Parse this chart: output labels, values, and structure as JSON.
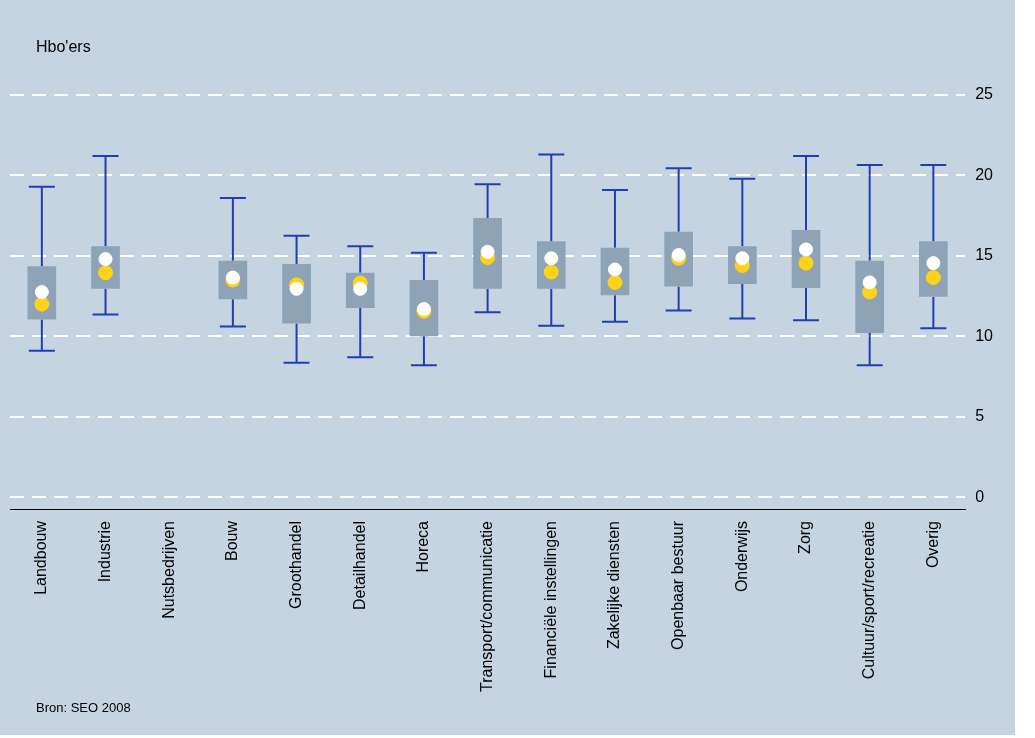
{
  "chart_data": {
    "type": "box",
    "ylabel": "Hbo'ers",
    "annotations": [
      "Bron: SEO 2008"
    ],
    "categories": [
      "Landbouw",
      "Industrie",
      "Nutsbedrijven",
      "Bouw",
      "Groothandel",
      "Detailhandel",
      "Horeca",
      "Transport/communicatie",
      "Financiële instellingen",
      "Zakelijke diensten",
      "Openbaar bestuur",
      "Onderwijs",
      "Zorg",
      "Cultuur/sport/recreatie",
      "Overig"
    ],
    "series": [
      {
        "color": "#8fa3b6",
        "boxes": [
          {
            "low": 9.1,
            "q1": 11.05,
            "median": 12.0,
            "q3": 14.35,
            "high": 19.3,
            "mean": 12.75
          },
          {
            "low": 11.35,
            "q1": 12.95,
            "median": 13.95,
            "q3": 15.6,
            "high": 21.2,
            "mean": 14.8
          },
          null,
          {
            "low": 10.6,
            "q1": 12.3,
            "median": 13.5,
            "q3": 14.7,
            "high": 18.6,
            "mean": 13.65
          },
          {
            "low": 8.35,
            "q1": 10.8,
            "median": 13.2,
            "q3": 14.5,
            "high": 16.25,
            "mean": 12.95
          },
          {
            "low": 8.7,
            "q1": 11.75,
            "median": 13.3,
            "q3": 13.95,
            "high": 15.6,
            "mean": 12.95
          },
          {
            "low": 8.2,
            "q1": 10.0,
            "median": 11.55,
            "q3": 13.5,
            "high": 15.2,
            "mean": 11.7
          },
          {
            "low": 11.5,
            "q1": 12.95,
            "median": 14.9,
            "q3": 17.35,
            "high": 19.45,
            "mean": 15.25
          },
          {
            "low": 10.65,
            "q1": 12.95,
            "median": 14.0,
            "q3": 15.9,
            "high": 21.3,
            "mean": 14.85
          },
          {
            "low": 10.9,
            "q1": 12.55,
            "median": 13.35,
            "q3": 15.5,
            "high": 19.1,
            "mean": 14.15
          },
          {
            "low": 11.6,
            "q1": 13.1,
            "median": 14.85,
            "q3": 16.5,
            "high": 20.45,
            "mean": 15.05
          },
          {
            "low": 11.1,
            "q1": 13.25,
            "median": 14.4,
            "q3": 15.6,
            "high": 19.8,
            "mean": 14.85
          },
          {
            "low": 11.0,
            "q1": 13.0,
            "median": 14.55,
            "q3": 16.6,
            "high": 21.2,
            "mean": 15.4
          },
          {
            "low": 8.2,
            "q1": 10.2,
            "median": 12.75,
            "q3": 14.7,
            "high": 20.65,
            "mean": 13.35
          },
          {
            "low": 10.5,
            "q1": 12.45,
            "median": 13.65,
            "q3": 15.9,
            "high": 20.65,
            "mean": 14.55
          }
        ]
      }
    ],
    "ylim": [
      -0.8,
      25
    ],
    "yticks": [
      0,
      5,
      10,
      15,
      20,
      25
    ],
    "grid": "y",
    "legend": false,
    "marker": "circle"
  }
}
